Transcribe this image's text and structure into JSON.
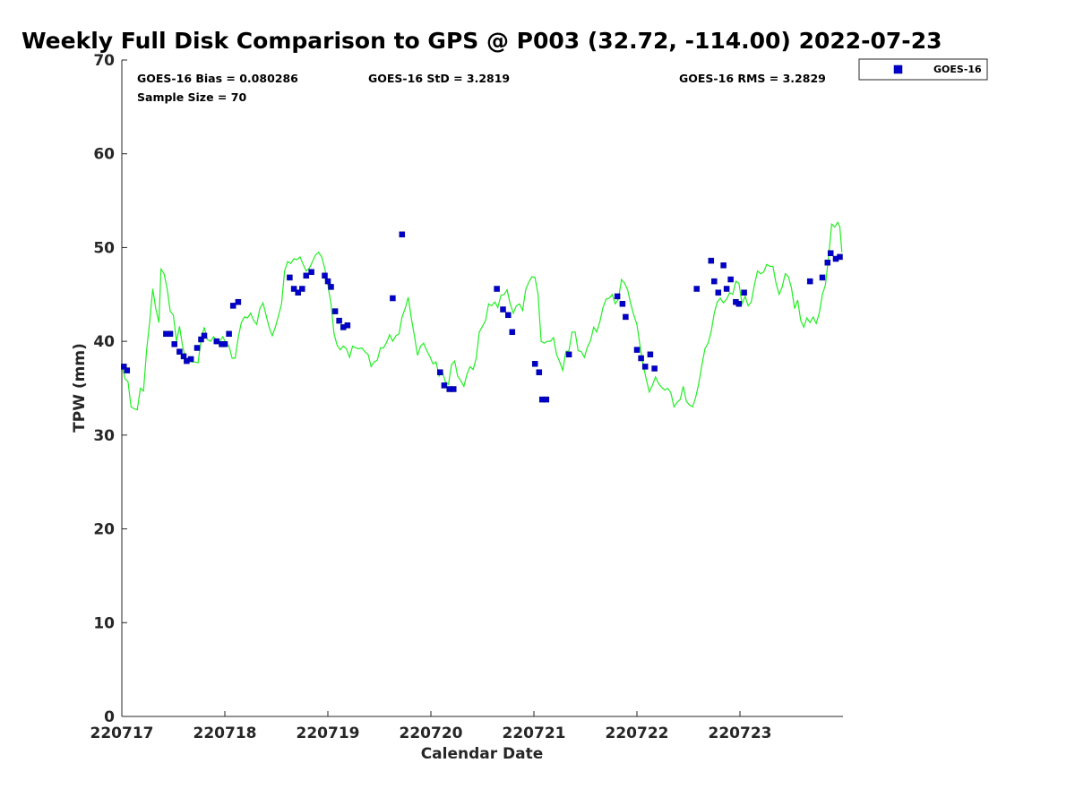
{
  "chart_data": {
    "type": "scatter",
    "title": "Weekly Full Disk Comparison to GPS @ P003 (32.72, -114.00) 2022-07-23",
    "xlabel": "Calendar Date",
    "ylabel": "TPW (mm)",
    "xlim": [
      17.0,
      24.0
    ],
    "ylim": [
      0,
      70
    ],
    "x_ticks": [
      17,
      18,
      19,
      20,
      21,
      22,
      23
    ],
    "x_tick_labels": [
      "220717",
      "220718",
      "220719",
      "220720",
      "220721",
      "220722",
      "220723"
    ],
    "y_ticks": [
      0,
      10,
      20,
      30,
      40,
      50,
      60,
      70
    ],
    "y_tick_labels": [
      "0",
      "10",
      "20",
      "30",
      "40",
      "50",
      "60",
      "70"
    ],
    "grid": false,
    "legend_position": "top-right",
    "stats": {
      "bias": "GOES-16 Bias = 0.080286",
      "std": "GOES-16 StD = 3.2819",
      "rms": "GOES-16 RMS = 3.2829",
      "sample": "Sample Size = 70"
    },
    "series": [
      {
        "name": "GOES-16",
        "kind": "scatter",
        "color": "#0000cc",
        "points": [
          [
            17.02,
            37.3
          ],
          [
            17.05,
            36.9
          ],
          [
            17.43,
            40.8
          ],
          [
            17.47,
            40.8
          ],
          [
            17.51,
            39.7
          ],
          [
            17.56,
            38.9
          ],
          [
            17.6,
            38.4
          ],
          [
            17.63,
            37.9
          ],
          [
            17.67,
            38.1
          ],
          [
            17.73,
            39.3
          ],
          [
            17.77,
            40.2
          ],
          [
            17.8,
            40.6
          ],
          [
            17.92,
            40.0
          ],
          [
            17.97,
            39.7
          ],
          [
            18.0,
            39.7
          ],
          [
            18.04,
            40.8
          ],
          [
            18.08,
            43.8
          ],
          [
            18.13,
            44.2
          ],
          [
            18.63,
            46.8
          ],
          [
            18.67,
            45.6
          ],
          [
            18.71,
            45.2
          ],
          [
            18.75,
            45.6
          ],
          [
            18.79,
            47.0
          ],
          [
            18.84,
            47.4
          ],
          [
            18.97,
            47.0
          ],
          [
            19.0,
            46.4
          ],
          [
            19.03,
            45.8
          ],
          [
            19.07,
            43.2
          ],
          [
            19.11,
            42.2
          ],
          [
            19.15,
            41.5
          ],
          [
            19.19,
            41.7
          ],
          [
            19.63,
            44.6
          ],
          [
            19.72,
            51.4
          ],
          [
            20.09,
            36.7
          ],
          [
            20.13,
            35.3
          ],
          [
            20.18,
            34.9
          ],
          [
            20.22,
            34.9
          ],
          [
            20.64,
            45.6
          ],
          [
            20.7,
            43.4
          ],
          [
            20.75,
            42.8
          ],
          [
            20.79,
            41.0
          ],
          [
            21.01,
            37.6
          ],
          [
            21.05,
            36.7
          ],
          [
            21.08,
            33.8
          ],
          [
            21.12,
            33.8
          ],
          [
            21.34,
            38.6
          ],
          [
            21.81,
            44.8
          ],
          [
            21.86,
            44.0
          ],
          [
            21.89,
            42.6
          ],
          [
            22.0,
            39.1
          ],
          [
            22.04,
            38.2
          ],
          [
            22.08,
            37.3
          ],
          [
            22.13,
            38.6
          ],
          [
            22.17,
            37.1
          ],
          [
            22.58,
            45.6
          ],
          [
            22.72,
            48.6
          ],
          [
            22.75,
            46.4
          ],
          [
            22.79,
            45.2
          ],
          [
            22.84,
            48.1
          ],
          [
            22.87,
            45.6
          ],
          [
            22.91,
            46.6
          ],
          [
            22.96,
            44.2
          ],
          [
            22.99,
            44.0
          ],
          [
            23.04,
            45.2
          ],
          [
            23.68,
            46.4
          ],
          [
            23.8,
            46.8
          ],
          [
            23.85,
            48.4
          ],
          [
            23.88,
            49.4
          ],
          [
            23.93,
            48.8
          ],
          [
            23.97,
            49.0
          ]
        ]
      },
      {
        "kind": "line",
        "color": "#22ee22",
        "points": [
          [
            17.0,
            37.6
          ],
          [
            17.03,
            36.0
          ],
          [
            17.06,
            35.7
          ],
          [
            17.09,
            33.0
          ],
          [
            17.12,
            32.8
          ],
          [
            17.15,
            32.7
          ],
          [
            17.18,
            35.0
          ],
          [
            17.21,
            34.7
          ],
          [
            17.24,
            39.0
          ],
          [
            17.27,
            42.0
          ],
          [
            17.3,
            45.6
          ],
          [
            17.33,
            43.5
          ],
          [
            17.36,
            42.0
          ],
          [
            17.38,
            47.7
          ],
          [
            17.41,
            47.2
          ],
          [
            17.44,
            45.6
          ],
          [
            17.47,
            43.2
          ],
          [
            17.5,
            42.8
          ],
          [
            17.53,
            40.0
          ],
          [
            17.56,
            41.6
          ],
          [
            17.59,
            39.5
          ],
          [
            17.62,
            38.0
          ],
          [
            17.65,
            38.3
          ],
          [
            17.68,
            37.8
          ],
          [
            17.71,
            37.8
          ],
          [
            17.74,
            37.7
          ],
          [
            17.77,
            40.2
          ],
          [
            17.8,
            41.5
          ],
          [
            17.83,
            40.2
          ],
          [
            17.86,
            40.0
          ],
          [
            17.89,
            40.5
          ],
          [
            17.92,
            40.1
          ],
          [
            17.95,
            40.0
          ],
          [
            17.98,
            40.5
          ],
          [
            18.01,
            39.8
          ],
          [
            18.04,
            39.5
          ],
          [
            18.07,
            38.2
          ],
          [
            18.1,
            38.2
          ],
          [
            18.13,
            40.4
          ],
          [
            18.16,
            42.0
          ],
          [
            18.19,
            42.6
          ],
          [
            18.22,
            42.5
          ],
          [
            18.25,
            43.0
          ],
          [
            18.28,
            42.2
          ],
          [
            18.31,
            41.8
          ],
          [
            18.34,
            43.5
          ],
          [
            18.37,
            44.1
          ],
          [
            18.4,
            42.8
          ],
          [
            18.43,
            41.5
          ],
          [
            18.46,
            40.6
          ],
          [
            18.49,
            41.5
          ],
          [
            18.52,
            42.7
          ],
          [
            18.55,
            44.0
          ],
          [
            18.58,
            47.5
          ],
          [
            18.61,
            48.5
          ],
          [
            18.64,
            48.3
          ],
          [
            18.67,
            48.8
          ],
          [
            18.7,
            48.7
          ],
          [
            18.73,
            49.0
          ],
          [
            18.76,
            48.2
          ],
          [
            18.79,
            47.5
          ],
          [
            18.82,
            47.8
          ],
          [
            18.85,
            48.5
          ],
          [
            18.88,
            49.2
          ],
          [
            18.91,
            49.5
          ],
          [
            18.94,
            49.0
          ],
          [
            18.97,
            47.8
          ],
          [
            19.0,
            46.0
          ],
          [
            19.03,
            44.0
          ],
          [
            19.06,
            40.8
          ],
          [
            19.09,
            39.6
          ],
          [
            19.12,
            39.1
          ],
          [
            19.15,
            39.5
          ],
          [
            19.18,
            39.2
          ],
          [
            19.21,
            38.3
          ],
          [
            19.24,
            39.5
          ],
          [
            19.27,
            39.3
          ],
          [
            19.3,
            39.2
          ],
          [
            19.33,
            39.3
          ],
          [
            19.36,
            38.9
          ],
          [
            19.39,
            38.6
          ],
          [
            19.42,
            37.3
          ],
          [
            19.45,
            37.8
          ],
          [
            19.48,
            38.0
          ],
          [
            19.51,
            39.3
          ],
          [
            19.54,
            39.3
          ],
          [
            19.57,
            39.9
          ],
          [
            19.6,
            40.7
          ],
          [
            19.63,
            40.0
          ],
          [
            19.66,
            40.6
          ],
          [
            19.69,
            40.8
          ],
          [
            19.72,
            42.6
          ],
          [
            19.75,
            43.5
          ],
          [
            19.78,
            44.7
          ],
          [
            19.81,
            42.5
          ],
          [
            19.84,
            40.6
          ],
          [
            19.87,
            38.5
          ],
          [
            19.9,
            39.5
          ],
          [
            19.93,
            39.8
          ],
          [
            19.96,
            39.0
          ],
          [
            19.99,
            38.4
          ],
          [
            20.02,
            37.6
          ],
          [
            20.05,
            37.8
          ],
          [
            20.08,
            36.3
          ],
          [
            20.11,
            36.8
          ],
          [
            20.14,
            35.7
          ],
          [
            20.17,
            35.4
          ],
          [
            20.2,
            37.5
          ],
          [
            20.23,
            37.9
          ],
          [
            20.26,
            36.3
          ],
          [
            20.29,
            35.8
          ],
          [
            20.32,
            35.2
          ],
          [
            20.35,
            36.5
          ],
          [
            20.38,
            37.3
          ],
          [
            20.41,
            37.0
          ],
          [
            20.44,
            38.2
          ],
          [
            20.47,
            41.0
          ],
          [
            20.5,
            41.6
          ],
          [
            20.53,
            42.2
          ],
          [
            20.56,
            44.0
          ],
          [
            20.59,
            43.8
          ],
          [
            20.62,
            44.2
          ],
          [
            20.65,
            43.6
          ],
          [
            20.68,
            44.9
          ],
          [
            20.71,
            45.0
          ],
          [
            20.74,
            45.5
          ],
          [
            20.77,
            44.0
          ],
          [
            20.8,
            43.0
          ],
          [
            20.83,
            43.8
          ],
          [
            20.86,
            44.0
          ],
          [
            20.89,
            43.3
          ],
          [
            20.92,
            45.5
          ],
          [
            20.95,
            46.3
          ],
          [
            20.98,
            46.9
          ],
          [
            21.01,
            46.8
          ],
          [
            21.04,
            45.0
          ],
          [
            21.07,
            40.0
          ],
          [
            21.1,
            39.8
          ],
          [
            21.13,
            40.0
          ],
          [
            21.16,
            40.0
          ],
          [
            21.19,
            40.4
          ],
          [
            21.22,
            38.6
          ],
          [
            21.25,
            37.8
          ],
          [
            21.28,
            36.9
          ],
          [
            21.31,
            38.9
          ],
          [
            21.34,
            39.0
          ],
          [
            21.37,
            41.0
          ],
          [
            21.4,
            41.0
          ],
          [
            21.43,
            39.0
          ],
          [
            21.46,
            38.9
          ],
          [
            21.49,
            38.3
          ],
          [
            21.52,
            39.4
          ],
          [
            21.55,
            40.1
          ],
          [
            21.58,
            41.5
          ],
          [
            21.61,
            41.0
          ],
          [
            21.64,
            42.1
          ],
          [
            21.67,
            43.6
          ],
          [
            21.7,
            44.5
          ],
          [
            21.73,
            44.6
          ],
          [
            21.76,
            45.0
          ],
          [
            21.79,
            44.0
          ],
          [
            21.82,
            44.5
          ],
          [
            21.85,
            46.6
          ],
          [
            21.88,
            46.2
          ],
          [
            21.91,
            45.5
          ],
          [
            21.94,
            44.0
          ],
          [
            21.97,
            42.8
          ],
          [
            22.0,
            41.8
          ],
          [
            22.03,
            39.5
          ],
          [
            22.06,
            37.5
          ],
          [
            22.09,
            36.0
          ],
          [
            22.12,
            34.6
          ],
          [
            22.15,
            35.3
          ],
          [
            22.18,
            36.2
          ],
          [
            22.21,
            35.5
          ],
          [
            22.24,
            35.1
          ],
          [
            22.27,
            34.8
          ],
          [
            22.3,
            35.0
          ],
          [
            22.33,
            34.5
          ],
          [
            22.36,
            33.0
          ],
          [
            22.39,
            33.5
          ],
          [
            22.42,
            33.8
          ],
          [
            22.45,
            35.2
          ],
          [
            22.48,
            33.6
          ],
          [
            22.51,
            33.2
          ],
          [
            22.54,
            33.0
          ],
          [
            22.57,
            34.0
          ],
          [
            22.6,
            35.5
          ],
          [
            22.63,
            37.4
          ],
          [
            22.66,
            39.2
          ],
          [
            22.69,
            39.8
          ],
          [
            22.72,
            41.0
          ],
          [
            22.75,
            43.0
          ],
          [
            22.78,
            44.2
          ],
          [
            22.81,
            44.6
          ],
          [
            22.84,
            44.1
          ],
          [
            22.87,
            44.5
          ],
          [
            22.9,
            45.2
          ],
          [
            22.93,
            45.0
          ],
          [
            22.96,
            46.4
          ],
          [
            22.99,
            46.2
          ],
          [
            23.02,
            44.0
          ],
          [
            23.05,
            44.8
          ],
          [
            23.08,
            43.8
          ],
          [
            23.11,
            44.2
          ],
          [
            23.14,
            46.0
          ],
          [
            23.17,
            47.5
          ],
          [
            23.2,
            47.2
          ],
          [
            23.23,
            47.4
          ],
          [
            23.26,
            48.2
          ],
          [
            23.29,
            48.0
          ],
          [
            23.32,
            48.0
          ],
          [
            23.35,
            46.2
          ],
          [
            23.38,
            45.0
          ],
          [
            23.41,
            45.8
          ],
          [
            23.44,
            47.2
          ],
          [
            23.47,
            46.9
          ],
          [
            23.5,
            45.7
          ],
          [
            23.53,
            43.5
          ],
          [
            23.56,
            44.4
          ],
          [
            23.59,
            42.2
          ],
          [
            23.62,
            41.5
          ],
          [
            23.65,
            42.5
          ],
          [
            23.68,
            42.0
          ],
          [
            23.71,
            42.6
          ],
          [
            23.74,
            41.9
          ],
          [
            23.77,
            43.0
          ],
          [
            23.8,
            45.0
          ],
          [
            23.83,
            46.0
          ],
          [
            23.86,
            49.0
          ],
          [
            23.89,
            52.5
          ],
          [
            23.92,
            52.2
          ],
          [
            23.95,
            52.7
          ],
          [
            23.97,
            52.2
          ],
          [
            23.99,
            49.5
          ]
        ]
      }
    ]
  }
}
